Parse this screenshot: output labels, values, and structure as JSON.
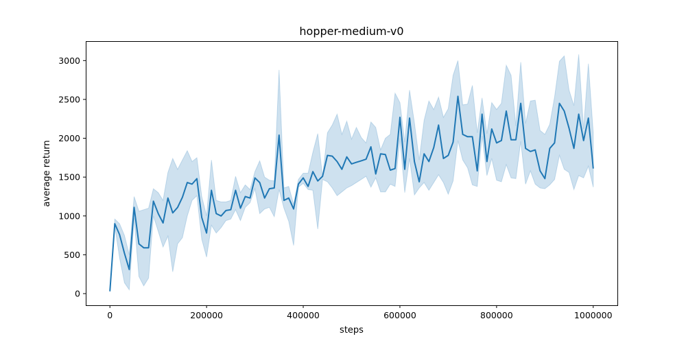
{
  "chart_data": {
    "type": "line",
    "title": "hopper-medium-v0",
    "xlabel": "steps",
    "ylabel": "average return",
    "xlim": [
      -50000,
      1050000
    ],
    "ylim": [
      -150,
      3250
    ],
    "xticks": [
      0,
      200000,
      400000,
      600000,
      800000,
      1000000
    ],
    "xtick_labels": [
      "0",
      "200000",
      "400000",
      "600000",
      "800000",
      "1000000"
    ],
    "yticks": [
      0,
      500,
      1000,
      1500,
      2000,
      2500,
      3000
    ],
    "ytick_labels": [
      "0",
      "500",
      "1000",
      "1500",
      "2000",
      "2500",
      "3000"
    ],
    "grid": false,
    "legend": "none",
    "colors": {
      "line": "#1f77b4",
      "band": "#1f77b4"
    },
    "x": [
      0,
      10000,
      20000,
      30000,
      40000,
      50000,
      60000,
      70000,
      80000,
      90000,
      100000,
      110000,
      120000,
      130000,
      140000,
      150000,
      160000,
      170000,
      180000,
      190000,
      200000,
      210000,
      220000,
      230000,
      240000,
      250000,
      260000,
      270000,
      280000,
      290000,
      300000,
      310000,
      320000,
      330000,
      340000,
      350000,
      360000,
      370000,
      380000,
      390000,
      400000,
      410000,
      420000,
      430000,
      440000,
      450000,
      460000,
      470000,
      480000,
      490000,
      500000,
      510000,
      520000,
      530000,
      540000,
      550000,
      560000,
      570000,
      580000,
      590000,
      600000,
      610000,
      620000,
      630000,
      640000,
      650000,
      660000,
      670000,
      680000,
      690000,
      700000,
      710000,
      720000,
      730000,
      740000,
      750000,
      760000,
      770000,
      780000,
      790000,
      800000,
      810000,
      820000,
      830000,
      840000,
      850000,
      860000,
      870000,
      880000,
      890000,
      900000,
      910000,
      920000,
      930000,
      940000,
      950000,
      960000,
      970000,
      980000,
      990000,
      1000000
    ],
    "series": [
      {
        "mean": [
          30,
          900,
          760,
          520,
          310,
          1110,
          640,
          590,
          590,
          1190,
          1030,
          910,
          1230,
          1040,
          1110,
          1240,
          1430,
          1410,
          1480,
          980,
          780,
          1330,
          1030,
          1000,
          1070,
          1080,
          1330,
          1100,
          1250,
          1230,
          1490,
          1430,
          1230,
          1350,
          1360,
          2040,
          1200,
          1230,
          1090,
          1410,
          1490,
          1380,
          1570,
          1450,
          1510,
          1780,
          1770,
          1700,
          1600,
          1760,
          1670,
          1690,
          1710,
          1730,
          1890,
          1540,
          1800,
          1790,
          1590,
          1610,
          2270,
          1600,
          2260,
          1700,
          1440,
          1800,
          1700,
          1880,
          2170,
          1740,
          1780,
          1950,
          2540,
          2050,
          2020,
          2020,
          1580,
          2310,
          1700,
          2120,
          1940,
          1970,
          2350,
          1980,
          1980,
          2450,
          1870,
          1830,
          1850,
          1580,
          1480,
          1870,
          1940,
          2450,
          2350,
          2130,
          1870,
          2310,
          1970,
          2260,
          1610
        ],
        "upper": [
          40,
          960,
          900,
          750,
          500,
          1250,
          1060,
          1080,
          1100,
          1350,
          1300,
          1200,
          1560,
          1740,
          1600,
          1720,
          1840,
          1700,
          1750,
          1250,
          1000,
          1720,
          1200,
          1180,
          1180,
          1200,
          1510,
          1300,
          1400,
          1340,
          1570,
          1710,
          1500,
          1460,
          1450,
          2880,
          1360,
          1380,
          1150,
          1470,
          1550,
          1550,
          1820,
          2060,
          1500,
          2070,
          2170,
          2310,
          2050,
          2220,
          1990,
          2140,
          2010,
          1940,
          2210,
          2140,
          1850,
          2000,
          2050,
          2580,
          2460,
          1950,
          2620,
          2200,
          1720,
          2230,
          2480,
          2370,
          2530,
          2270,
          2380,
          2810,
          3000,
          2430,
          2440,
          2680,
          2070,
          2520,
          2060,
          2460,
          2370,
          2450,
          2940,
          2810,
          2160,
          2980,
          2190,
          2480,
          2490,
          2100,
          2050,
          2180,
          2530,
          2990,
          3060,
          2620,
          2420,
          3080,
          2120,
          2960,
          2070
        ],
        "lower": [
          20,
          870,
          460,
          140,
          50,
          970,
          220,
          100,
          200,
          1000,
          800,
          600,
          740,
          280,
          640,
          720,
          1000,
          1200,
          1260,
          700,
          470,
          880,
          780,
          850,
          940,
          960,
          1080,
          940,
          1110,
          1170,
          1350,
          1030,
          1090,
          1110,
          990,
          1340,
          1100,
          930,
          620,
          1370,
          1420,
          1340,
          1330,
          830,
          1470,
          1440,
          1360,
          1260,
          1310,
          1360,
          1390,
          1430,
          1470,
          1510,
          1370,
          1490,
          1310,
          1310,
          1410,
          1380,
          2000,
          1300,
          1740,
          1270,
          1360,
          1430,
          1330,
          1430,
          1530,
          1430,
          1280,
          1450,
          1970,
          1720,
          1620,
          1400,
          1380,
          2030,
          1520,
          1740,
          1460,
          1440,
          1660,
          1490,
          1480,
          1960,
          1410,
          1580,
          1410,
          1360,
          1350,
          1400,
          1470,
          1780,
          1600,
          1560,
          1340,
          1520,
          1490,
          1640,
          1370
        ]
      }
    ]
  }
}
